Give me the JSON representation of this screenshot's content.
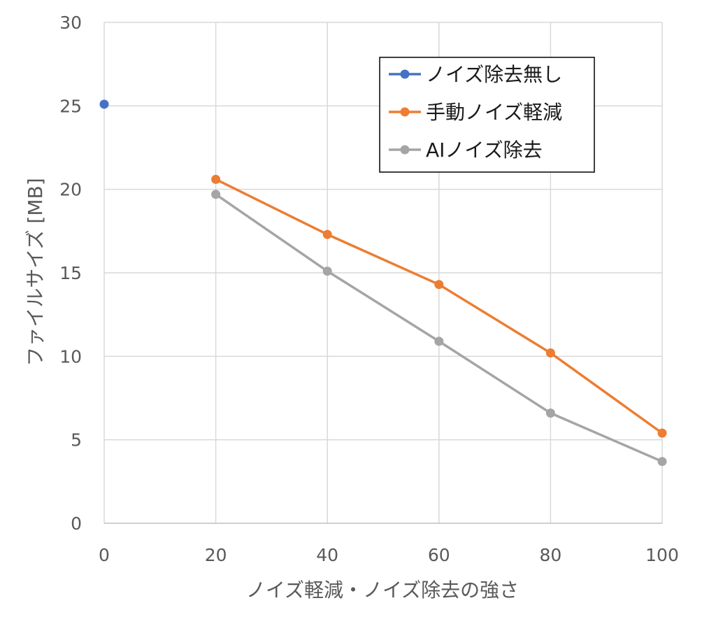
{
  "chart_data": {
    "type": "line",
    "title": "",
    "xlabel": "ノイズ軽減・ノイズ除去の強さ",
    "ylabel": "ファイルサイズ [MB]",
    "xlim": [
      0,
      100
    ],
    "ylim": [
      0,
      30
    ],
    "x_ticks": [
      0,
      20,
      40,
      60,
      80,
      100
    ],
    "y_ticks": [
      0,
      5,
      10,
      15,
      20,
      25,
      30
    ],
    "grid": true,
    "legend_position": "top-right",
    "series": [
      {
        "name": "ノイズ除去無し",
        "color": "#4472C4",
        "points": [
          {
            "x": 0,
            "y": 25.1
          }
        ]
      },
      {
        "name": "手動ノイズ軽減",
        "color": "#ED7D31",
        "points": [
          {
            "x": 20,
            "y": 20.6
          },
          {
            "x": 40,
            "y": 17.3
          },
          {
            "x": 60,
            "y": 14.3
          },
          {
            "x": 80,
            "y": 10.2
          },
          {
            "x": 100,
            "y": 5.4
          }
        ]
      },
      {
        "name": "AIノイズ除去",
        "color": "#A5A5A5",
        "points": [
          {
            "x": 20,
            "y": 19.7
          },
          {
            "x": 40,
            "y": 15.1
          },
          {
            "x": 60,
            "y": 10.9
          },
          {
            "x": 80,
            "y": 6.6
          },
          {
            "x": 100,
            "y": 3.7
          }
        ]
      }
    ]
  }
}
